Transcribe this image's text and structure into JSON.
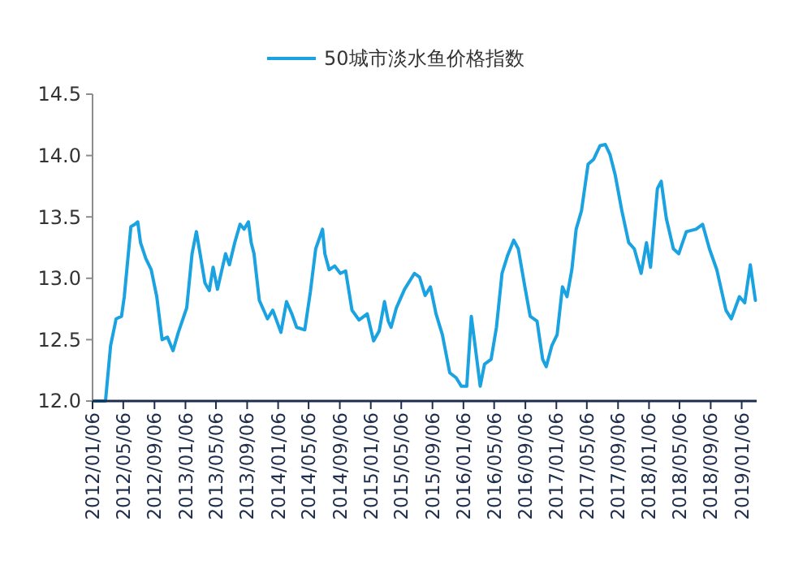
{
  "chart_data": {
    "type": "line",
    "legend": "top",
    "grid": false,
    "marker": "none",
    "line_style": "solid",
    "xlim": [
      "2012-01-06",
      "2019-03-06"
    ],
    "xticks": [
      {
        "value": "2012-01-06",
        "label": "2012/01/06"
      },
      {
        "value": "2012-05-06",
        "label": "2012/05/06"
      },
      {
        "value": "2012-09-06",
        "label": "2012/09/06"
      },
      {
        "value": "2013-01-06",
        "label": "2013/01/06"
      },
      {
        "value": "2013-05-06",
        "label": "2013/05/06"
      },
      {
        "value": "2013-09-06",
        "label": "2013/09/06"
      },
      {
        "value": "2014-01-06",
        "label": "2014/01/06"
      },
      {
        "value": "2014-05-06",
        "label": "2014/05/06"
      },
      {
        "value": "2014-09-06",
        "label": "2014/09/06"
      },
      {
        "value": "2015-01-06",
        "label": "2015/01/06"
      },
      {
        "value": "2015-05-06",
        "label": "2015/05/06"
      },
      {
        "value": "2015-09-06",
        "label": "2015/09/06"
      },
      {
        "value": "2016-01-06",
        "label": "2016/01/06"
      },
      {
        "value": "2016-05-06",
        "label": "2016/05/06"
      },
      {
        "value": "2016-09-06",
        "label": "2016/09/06"
      },
      {
        "value": "2017-01-06",
        "label": "2017/01/06"
      },
      {
        "value": "2017-05-06",
        "label": "2017/05/06"
      },
      {
        "value": "2017-09-06",
        "label": "2017/09/06"
      },
      {
        "value": "2018-01-06",
        "label": "2018/01/06"
      },
      {
        "value": "2018-05-06",
        "label": "2018/05/06"
      },
      {
        "value": "2018-09-06",
        "label": "2018/09/06"
      },
      {
        "value": "2019-01-06",
        "label": "2019/01/06"
      }
    ],
    "ylim": [
      12,
      14.5
    ],
    "yticks": [
      {
        "value": 12,
        "label": "12.0"
      },
      {
        "value": 12.5,
        "label": "12.5"
      },
      {
        "value": 13,
        "label": "13.0"
      },
      {
        "value": 13.5,
        "label": "13.5"
      },
      {
        "value": 14,
        "label": "14.0"
      },
      {
        "value": 14.5,
        "label": "14.5"
      }
    ],
    "x": [
      "2012-01-14",
      "2012-02-26",
      "2012-03-17",
      "2012-04-08",
      "2012-04-29",
      "2012-05-10",
      "2012-06-05",
      "2012-06-21",
      "2012-07-02",
      "2012-07-13",
      "2012-08-03",
      "2012-08-24",
      "2012-09-15",
      "2012-10-06",
      "2012-10-27",
      "2012-11-18",
      "2012-12-09",
      "2013-01-11",
      "2013-02-01",
      "2013-02-18",
      "2013-03-03",
      "2013-03-24",
      "2013-04-10",
      "2013-04-25",
      "2013-05-12",
      "2013-06-13",
      "2013-06-28",
      "2013-07-19",
      "2013-08-09",
      "2013-08-25",
      "2013-09-11",
      "2013-09-22",
      "2013-10-03",
      "2013-10-24",
      "2013-11-25",
      "2013-12-16",
      "2014-01-17",
      "2014-02-08",
      "2014-03-01",
      "2014-03-20",
      "2014-04-21",
      "2014-05-13",
      "2014-06-03",
      "2014-06-30",
      "2014-07-09",
      "2014-07-26",
      "2014-08-17",
      "2014-09-08",
      "2014-09-29",
      "2014-10-24",
      "2014-11-21",
      "2014-12-23",
      "2015-01-17",
      "2015-02-08",
      "2015-03-01",
      "2015-03-16",
      "2015-03-27",
      "2015-04-17",
      "2015-05-19",
      "2015-06-27",
      "2015-07-17",
      "2015-08-08",
      "2015-08-29",
      "2015-09-20",
      "2015-10-15",
      "2015-11-13",
      "2015-12-08",
      "2015-12-29",
      "2016-01-19",
      "2016-02-06",
      "2016-02-21",
      "2016-03-12",
      "2016-03-29",
      "2016-04-24",
      "2016-05-15",
      "2016-06-06",
      "2016-06-27",
      "2016-07-22",
      "2016-08-09",
      "2016-09-04",
      "2016-09-25",
      "2016-10-22",
      "2016-11-13",
      "2016-11-27",
      "2016-12-19",
      "2017-01-09",
      "2017-01-30",
      "2017-02-17",
      "2017-03-08",
      "2017-03-25",
      "2017-04-15",
      "2017-05-11",
      "2017-06-02",
      "2017-06-27",
      "2017-07-18",
      "2017-08-05",
      "2017-08-26",
      "2017-09-21",
      "2017-10-18",
      "2017-11-09",
      "2017-12-06",
      "2017-12-27",
      "2018-01-12",
      "2018-02-08",
      "2018-02-23",
      "2018-03-15",
      "2018-04-12",
      "2018-05-03",
      "2018-06-02",
      "2018-07-10",
      "2018-08-05",
      "2018-09-01",
      "2018-09-30",
      "2018-11-05",
      "2018-11-26",
      "2018-12-28",
      "2019-01-18",
      "2019-02-09",
      "2019-03-01"
    ],
    "series": [
      {
        "name": "50城市淡水鱼价格指数",
        "color": "#1aa3e0",
        "values": [
          12.0,
          12.0,
          12.45,
          12.67,
          12.69,
          12.85,
          13.42,
          13.44,
          13.46,
          13.29,
          13.16,
          13.07,
          12.85,
          12.5,
          12.52,
          12.41,
          12.56,
          12.76,
          13.2,
          13.38,
          13.22,
          12.96,
          12.9,
          13.09,
          12.91,
          13.2,
          13.11,
          13.29,
          13.44,
          13.4,
          13.46,
          13.29,
          13.2,
          12.82,
          12.67,
          12.74,
          12.56,
          12.81,
          12.71,
          12.6,
          12.58,
          12.89,
          13.24,
          13.4,
          13.2,
          13.07,
          13.1,
          13.04,
          13.06,
          12.74,
          12.66,
          12.71,
          12.49,
          12.57,
          12.81,
          12.65,
          12.6,
          12.76,
          12.91,
          13.04,
          13.01,
          12.86,
          12.93,
          12.71,
          12.54,
          12.23,
          12.19,
          12.12,
          12.12,
          12.69,
          12.45,
          12.12,
          12.3,
          12.34,
          12.6,
          13.04,
          13.18,
          13.31,
          13.24,
          12.93,
          12.69,
          12.65,
          12.34,
          12.28,
          12.45,
          12.54,
          12.93,
          12.85,
          13.07,
          13.4,
          13.55,
          13.93,
          13.97,
          14.08,
          14.09,
          14.01,
          13.84,
          13.55,
          13.29,
          13.24,
          13.04,
          13.29,
          13.09,
          13.73,
          13.79,
          13.49,
          13.24,
          13.2,
          13.38,
          13.4,
          13.44,
          13.24,
          13.07,
          12.74,
          12.67,
          12.85,
          12.8,
          13.11,
          12.82
        ]
      }
    ]
  }
}
